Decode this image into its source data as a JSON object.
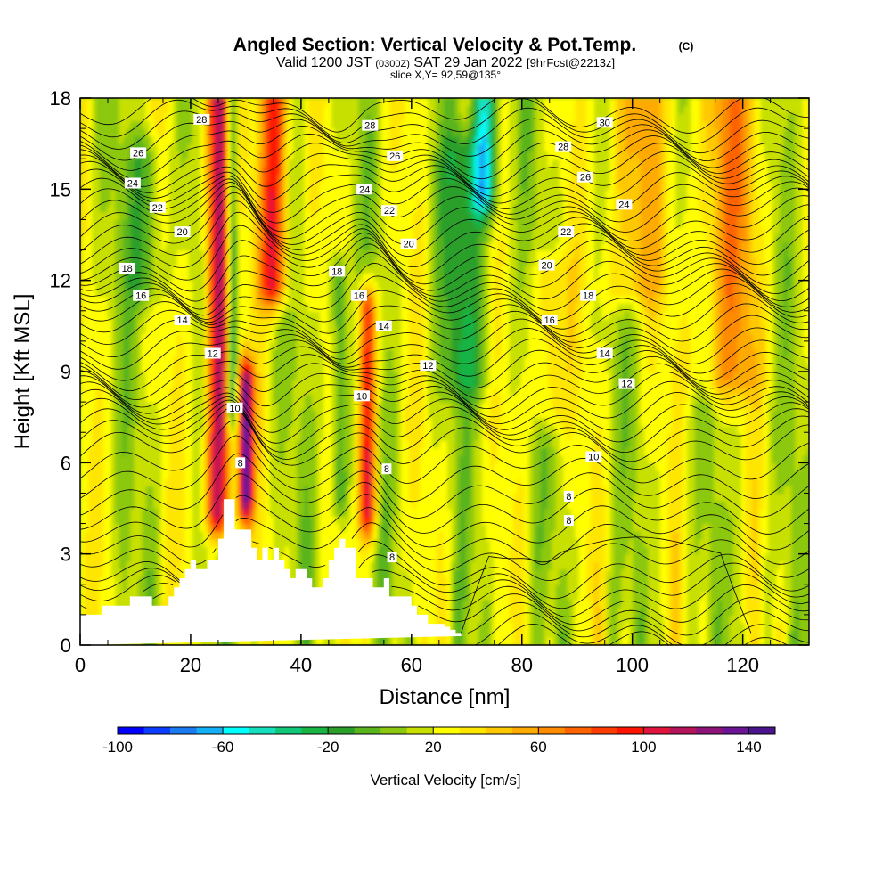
{
  "chart_data": {
    "type": "heatmap",
    "title": "Angled Section: Vertical Velocity & Pot.Temp.",
    "title_suffix": "(C)",
    "subtitle": {
      "valid_prefix": "Valid 1200 JST",
      "utc": "(0300Z)",
      "date": "SAT 29 Jan 2022",
      "forecast": "[9hrFcst@2213z]"
    },
    "slice": "slice X,Y= 92,59@135°",
    "xlabel": "Distance [nm]",
    "ylabel": "Height [Kft MSL]",
    "xlim": [
      0,
      132
    ],
    "ylim": [
      0,
      18
    ],
    "x_ticks": [
      "0",
      "20",
      "40",
      "60",
      "80",
      "100",
      "120"
    ],
    "y_ticks": [
      "0",
      "3",
      "6",
      "9",
      "12",
      "15",
      "18"
    ],
    "colorbar": {
      "label": "Vertical Velocity [cm/s]",
      "tick_labels": [
        "-100",
        "-60",
        "-20",
        "20",
        "60",
        "100",
        "140"
      ],
      "colors": [
        "#0000ff",
        "#0a3dff",
        "#1a7bf0",
        "#14b0f5",
        "#00ffff",
        "#14e0c0",
        "#10c878",
        "#18b444",
        "#2aa02a",
        "#5ab41c",
        "#8cc810",
        "#c8e000",
        "#ffff00",
        "#ffe600",
        "#ffc800",
        "#ffaa00",
        "#ff8c00",
        "#ff6400",
        "#ff3c00",
        "#ff1400",
        "#e0143c",
        "#b4145a",
        "#8c1478",
        "#6a1496",
        "#4c148c"
      ]
    },
    "velocity_cores": [
      {
        "x": 25,
        "w": 2.2,
        "amp": 105,
        "y0": 4.5,
        "y1": 18
      },
      {
        "x": 30,
        "w": 1.4,
        "amp": 110,
        "y0": 5.0,
        "y1": 8.5
      },
      {
        "x": 35,
        "w": 2.6,
        "amp": 85,
        "y0": 12,
        "y1": 18
      },
      {
        "x": 52,
        "w": 1.6,
        "amp": 85,
        "y0": 4.5,
        "y1": 11
      },
      {
        "x": 27.5,
        "w": 1.0,
        "amp": -70,
        "y0": 8,
        "y1": 18
      },
      {
        "x": 47,
        "w": 1.6,
        "amp": -40,
        "y0": 5,
        "y1": 12
      },
      {
        "x": 73,
        "w": 2.2,
        "amp": -75,
        "y0": 15,
        "y1": 18
      },
      {
        "x": 70,
        "w": 4.5,
        "amp": -30,
        "y0": 9,
        "y1": 16
      },
      {
        "x": 117,
        "w": 6.0,
        "amp": 40,
        "y0": 9,
        "y1": 18
      },
      {
        "x": 100,
        "w": 5.0,
        "amp": 35,
        "y0": 12,
        "y1": 18
      },
      {
        "x": 85,
        "w": 3.0,
        "amp": 30,
        "y0": 8,
        "y1": 12
      },
      {
        "x": 12,
        "w": 3.0,
        "amp": -30,
        "y0": 12,
        "y1": 16
      }
    ],
    "terrain": {
      "x": [
        0,
        4,
        4,
        9,
        9,
        13,
        13,
        16,
        16,
        17,
        17,
        18,
        18,
        19,
        19,
        20,
        20,
        21,
        21,
        23,
        23,
        25,
        25,
        26,
        26,
        28,
        28,
        31,
        31,
        32,
        32,
        33,
        33,
        34,
        34,
        35,
        35,
        36,
        36,
        37,
        37,
        38,
        38,
        39,
        39,
        41,
        41,
        42,
        42,
        44,
        44,
        45,
        45,
        46,
        46,
        47,
        47,
        48,
        48,
        50,
        50,
        53,
        53,
        55,
        55,
        56,
        56,
        60,
        60,
        61,
        61,
        63,
        63,
        66,
        66,
        67,
        67,
        68,
        68,
        69,
        69,
        70,
        70,
        132
      ],
      "h": [
        1.0,
        1.0,
        1.3,
        1.3,
        1.6,
        1.6,
        1.3,
        1.3,
        1.6,
        1.6,
        1.9,
        1.9,
        2.2,
        2.2,
        2.5,
        2.5,
        2.8,
        2.8,
        2.5,
        2.5,
        2.8,
        2.8,
        3.5,
        3.5,
        4.8,
        4.8,
        3.8,
        3.8,
        3.2,
        3.2,
        2.8,
        2.8,
        3.2,
        3.2,
        2.8,
        2.8,
        3.2,
        3.2,
        2.8,
        2.8,
        2.5,
        2.5,
        2.2,
        2.2,
        2.5,
        2.5,
        2.2,
        2.2,
        1.9,
        1.9,
        2.2,
        2.2,
        2.8,
        2.8,
        3.2,
        3.2,
        3.5,
        3.5,
        3.2,
        3.2,
        2.2,
        2.2,
        1.9,
        1.9,
        2.2,
        2.2,
        1.6,
        1.6,
        1.3,
        1.3,
        1.0,
        1.0,
        0.7,
        0.7,
        0.6,
        0.6,
        0.5,
        0.5,
        0.4,
        0.4,
        0.3,
        0.3
      ]
    },
    "pot_temp_contours": {
      "levels": [
        6,
        8,
        10,
        12,
        14,
        16,
        18,
        20,
        22,
        24,
        26,
        28,
        30
      ],
      "labels": [
        {
          "text": "28",
          "x": 22,
          "y": 17.3
        },
        {
          "text": "26",
          "x": 10.5,
          "y": 16.2
        },
        {
          "text": "24",
          "x": 9.5,
          "y": 15.2
        },
        {
          "text": "22",
          "x": 14,
          "y": 14.4
        },
        {
          "text": "20",
          "x": 18.5,
          "y": 13.6
        },
        {
          "text": "18",
          "x": 8.5,
          "y": 12.4
        },
        {
          "text": "16",
          "x": 11,
          "y": 11.5
        },
        {
          "text": "14",
          "x": 18.5,
          "y": 10.7
        },
        {
          "text": "12",
          "x": 24,
          "y": 9.6
        },
        {
          "text": "10",
          "x": 28,
          "y": 7.8
        },
        {
          "text": "8",
          "x": 29,
          "y": 6.0
        },
        {
          "text": "28",
          "x": 52.5,
          "y": 17.1
        },
        {
          "text": "26",
          "x": 57,
          "y": 16.1
        },
        {
          "text": "24",
          "x": 51.5,
          "y": 15.0
        },
        {
          "text": "22",
          "x": 56,
          "y": 14.3
        },
        {
          "text": "20",
          "x": 59.5,
          "y": 13.2
        },
        {
          "text": "18",
          "x": 46.5,
          "y": 12.3
        },
        {
          "text": "16",
          "x": 50.5,
          "y": 11.5
        },
        {
          "text": "14",
          "x": 55,
          "y": 10.5
        },
        {
          "text": "12",
          "x": 63,
          "y": 9.2
        },
        {
          "text": "10",
          "x": 51,
          "y": 8.2
        },
        {
          "text": "8",
          "x": 55.5,
          "y": 5.8
        },
        {
          "text": "8",
          "x": 56.5,
          "y": 2.9
        },
        {
          "text": "30",
          "x": 95,
          "y": 17.2
        },
        {
          "text": "28",
          "x": 87.5,
          "y": 16.4
        },
        {
          "text": "26",
          "x": 91.5,
          "y": 15.4
        },
        {
          "text": "24",
          "x": 98.5,
          "y": 14.5
        },
        {
          "text": "22",
          "x": 88,
          "y": 13.6
        },
        {
          "text": "20",
          "x": 84.5,
          "y": 12.5
        },
        {
          "text": "18",
          "x": 92,
          "y": 11.5
        },
        {
          "text": "16",
          "x": 85,
          "y": 10.7
        },
        {
          "text": "14",
          "x": 95,
          "y": 9.6
        },
        {
          "text": "12",
          "x": 99,
          "y": 8.6
        },
        {
          "text": "10",
          "x": 93,
          "y": 6.2
        },
        {
          "text": "8",
          "x": 88.5,
          "y": 4.9
        },
        {
          "text": "8",
          "x": 88.5,
          "y": 4.1
        }
      ]
    }
  }
}
